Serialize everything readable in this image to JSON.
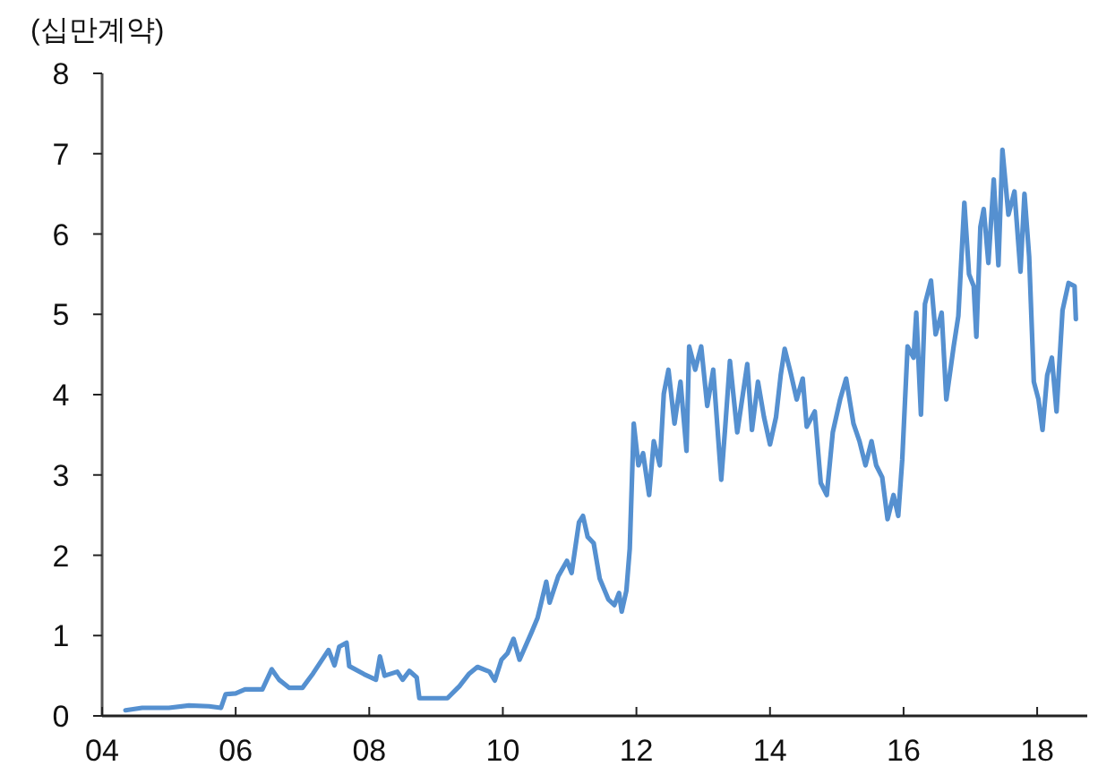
{
  "chart_data": {
    "type": "line",
    "ylabel": "(십만계약)",
    "x": [
      2004.35,
      2004.6,
      2005.0,
      2005.3,
      2005.6,
      2005.78,
      2005.85,
      2006.0,
      2006.14,
      2006.4,
      2006.54,
      2006.65,
      2006.8,
      2007.0,
      2007.16,
      2007.39,
      2007.48,
      2007.55,
      2007.66,
      2007.7,
      2007.92,
      2008.1,
      2008.16,
      2008.23,
      2008.42,
      2008.5,
      2008.6,
      2008.71,
      2008.75,
      2009.17,
      2009.35,
      2009.49,
      2009.62,
      2009.8,
      2009.88,
      2009.98,
      2010.07,
      2010.16,
      2010.25,
      2010.43,
      2010.52,
      2010.65,
      2010.7,
      2010.83,
      2010.96,
      2011.03,
      2011.14,
      2011.2,
      2011.27,
      2011.36,
      2011.45,
      2011.58,
      2011.67,
      2011.74,
      2011.78,
      2011.85,
      2011.9,
      2011.96,
      2012.03,
      2012.1,
      2012.19,
      2012.26,
      2012.35,
      2012.41,
      2012.48,
      2012.57,
      2012.66,
      2012.75,
      2012.79,
      2012.88,
      2012.97,
      2013.06,
      2013.15,
      2013.27,
      2013.33,
      2013.4,
      2013.51,
      2013.66,
      2013.73,
      2013.82,
      2013.91,
      2014.0,
      2014.09,
      2014.16,
      2014.22,
      2014.31,
      2014.4,
      2014.49,
      2014.55,
      2014.67,
      2014.76,
      2014.85,
      2014.94,
      2015.05,
      2015.14,
      2015.25,
      2015.34,
      2015.43,
      2015.52,
      2015.59,
      2015.68,
      2015.76,
      2015.85,
      2015.92,
      2015.98,
      2016.06,
      2016.15,
      2016.19,
      2016.26,
      2016.32,
      2016.41,
      2016.48,
      2016.57,
      2016.64,
      2016.75,
      2016.82,
      2016.91,
      2016.98,
      2017.05,
      2017.09,
      2017.15,
      2017.2,
      2017.27,
      2017.35,
      2017.42,
      2017.48,
      2017.57,
      2017.66,
      2017.75,
      2017.81,
      2017.88,
      2017.95,
      2018.02,
      2018.08,
      2018.15,
      2018.22,
      2018.29,
      2018.38,
      2018.47,
      2018.56,
      2018.58
    ],
    "series": [
      {
        "color": "#5590d0",
        "values": [
          0.07,
          0.1,
          0.1,
          0.13,
          0.12,
          0.1,
          0.27,
          0.28,
          0.33,
          0.33,
          0.58,
          0.45,
          0.35,
          0.35,
          0.53,
          0.82,
          0.63,
          0.86,
          0.91,
          0.62,
          0.52,
          0.45,
          0.74,
          0.5,
          0.55,
          0.45,
          0.56,
          0.48,
          0.22,
          0.22,
          0.37,
          0.52,
          0.61,
          0.55,
          0.44,
          0.7,
          0.78,
          0.96,
          0.7,
          1.04,
          1.22,
          1.67,
          1.41,
          1.74,
          1.93,
          1.78,
          2.41,
          2.49,
          2.23,
          2.15,
          1.71,
          1.45,
          1.38,
          1.53,
          1.3,
          1.56,
          2.08,
          3.64,
          3.12,
          3.27,
          2.75,
          3.42,
          3.12,
          4.01,
          4.31,
          3.64,
          4.16,
          3.3,
          4.6,
          4.31,
          4.6,
          3.86,
          4.31,
          2.94,
          3.6,
          4.42,
          3.53,
          4.38,
          3.56,
          4.16,
          3.72,
          3.38,
          3.72,
          4.24,
          4.57,
          4.27,
          3.94,
          4.2,
          3.6,
          3.79,
          2.9,
          2.75,
          3.53,
          3.94,
          4.2,
          3.64,
          3.42,
          3.12,
          3.42,
          3.12,
          2.97,
          2.45,
          2.75,
          2.49,
          3.19,
          4.6,
          4.46,
          5.02,
          3.75,
          5.13,
          5.42,
          4.75,
          5.02,
          3.94,
          4.6,
          4.98,
          6.39,
          5.5,
          5.35,
          4.72,
          6.09,
          6.31,
          5.64,
          6.68,
          5.61,
          7.05,
          6.24,
          6.53,
          5.53,
          6.5,
          5.72,
          4.16,
          3.94,
          3.56,
          4.24,
          4.46,
          3.79,
          5.05,
          5.39,
          5.35,
          4.94
        ]
      }
    ],
    "xlim": [
      2004,
      2018.75
    ],
    "xticks": [
      {
        "value": 2004,
        "label": "04"
      },
      {
        "value": 2006,
        "label": "06"
      },
      {
        "value": 2008,
        "label": "08"
      },
      {
        "value": 2010,
        "label": "10"
      },
      {
        "value": 2012,
        "label": "12"
      },
      {
        "value": 2014,
        "label": "14"
      },
      {
        "value": 2016,
        "label": "16"
      },
      {
        "value": 2018,
        "label": "18"
      }
    ],
    "ylim": [
      0,
      8
    ],
    "yticks": [
      0,
      1,
      2,
      3,
      4,
      5,
      6,
      7,
      8
    ]
  }
}
